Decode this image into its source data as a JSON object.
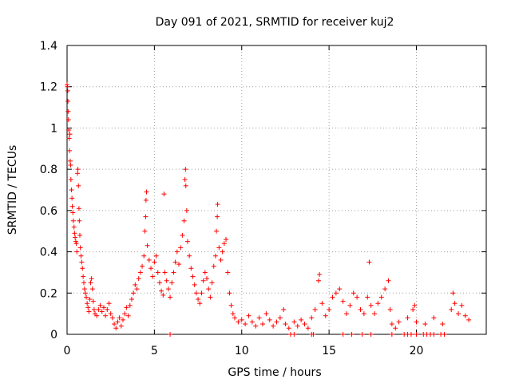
{
  "chart_data": {
    "type": "scatter",
    "title": "Day 091 of 2021, SRMTID for receiver kuj2",
    "xlabel": "GPS time / hours",
    "ylabel": "SRMTID / TECUs",
    "xlim": [
      0,
      24
    ],
    "ylim": [
      0,
      1.4
    ],
    "xticks": [
      0,
      5,
      10,
      15,
      20
    ],
    "xtick_labels": [
      "0",
      "5",
      "10",
      "15",
      "20"
    ],
    "yticks": [
      0,
      0.2,
      0.4,
      0.6,
      0.8,
      1.0,
      1.2,
      1.4
    ],
    "ytick_labels": [
      "0",
      "0.2",
      "0.4",
      "0.6",
      "0.8",
      "1",
      "1.2",
      "1.4"
    ],
    "grid": true,
    "marker": "+",
    "color": "#ff0000",
    "series": [
      {
        "name": "SRMTID",
        "points": [
          [
            0.0,
            1.21
          ],
          [
            0.02,
            1.2
          ],
          [
            0.04,
            1.18
          ],
          [
            0.05,
            1.13
          ],
          [
            0.06,
            1.08
          ],
          [
            0.08,
            1.04
          ],
          [
            0.1,
            0.99
          ],
          [
            0.12,
            0.95
          ],
          [
            0.14,
            0.89
          ],
          [
            0.16,
            0.97
          ],
          [
            0.18,
            0.84
          ],
          [
            0.2,
            0.82
          ],
          [
            0.22,
            0.75
          ],
          [
            0.25,
            0.7
          ],
          [
            0.28,
            0.66
          ],
          [
            0.3,
            0.62
          ],
          [
            0.33,
            0.59
          ],
          [
            0.36,
            0.55
          ],
          [
            0.4,
            0.52
          ],
          [
            0.43,
            0.49
          ],
          [
            0.46,
            0.47
          ],
          [
            0.5,
            0.45
          ],
          [
            0.53,
            0.44
          ],
          [
            0.56,
            0.4
          ],
          [
            0.6,
            0.78
          ],
          [
            0.62,
            0.8
          ],
          [
            0.65,
            0.72
          ],
          [
            0.68,
            0.61
          ],
          [
            0.7,
            0.55
          ],
          [
            0.73,
            0.48
          ],
          [
            0.76,
            0.42
          ],
          [
            0.8,
            0.38
          ],
          [
            0.84,
            0.35
          ],
          [
            0.88,
            0.32
          ],
          [
            0.92,
            0.28
          ],
          [
            0.96,
            0.25
          ],
          [
            1.0,
            0.22
          ],
          [
            1.05,
            0.2
          ],
          [
            1.1,
            0.18
          ],
          [
            1.15,
            0.15
          ],
          [
            1.2,
            0.13
          ],
          [
            1.25,
            0.11
          ],
          [
            1.3,
            0.17
          ],
          [
            1.35,
            0.25
          ],
          [
            1.4,
            0.27
          ],
          [
            1.45,
            0.22
          ],
          [
            1.5,
            0.16
          ],
          [
            1.55,
            0.12
          ],
          [
            1.6,
            0.1
          ],
          [
            1.7,
            0.09
          ],
          [
            1.8,
            0.12
          ],
          [
            1.9,
            0.14
          ],
          [
            2.0,
            0.11
          ],
          [
            2.1,
            0.13
          ],
          [
            2.2,
            0.09
          ],
          [
            2.3,
            0.12
          ],
          [
            2.4,
            0.15
          ],
          [
            2.5,
            0.1
          ],
          [
            2.6,
            0.08
          ],
          [
            2.7,
            0.05
          ],
          [
            2.8,
            0.03
          ],
          [
            2.9,
            0.06
          ],
          [
            3.0,
            0.08
          ],
          [
            3.1,
            0.04
          ],
          [
            3.2,
            0.07
          ],
          [
            3.3,
            0.1
          ],
          [
            3.4,
            0.13
          ],
          [
            3.5,
            0.09
          ],
          [
            3.6,
            0.14
          ],
          [
            3.7,
            0.17
          ],
          [
            3.8,
            0.2
          ],
          [
            3.9,
            0.24
          ],
          [
            4.0,
            0.22
          ],
          [
            4.1,
            0.27
          ],
          [
            4.2,
            0.3
          ],
          [
            4.3,
            0.33
          ],
          [
            4.4,
            0.38
          ],
          [
            4.45,
            0.5
          ],
          [
            4.5,
            0.57
          ],
          [
            4.52,
            0.65
          ],
          [
            4.55,
            0.69
          ],
          [
            4.6,
            0.43
          ],
          [
            4.7,
            0.36
          ],
          [
            4.8,
            0.32
          ],
          [
            4.9,
            0.28
          ],
          [
            5.0,
            0.35
          ],
          [
            5.1,
            0.38
          ],
          [
            5.2,
            0.3
          ],
          [
            5.3,
            0.25
          ],
          [
            5.4,
            0.21
          ],
          [
            5.5,
            0.19
          ],
          [
            5.55,
            0.68
          ],
          [
            5.6,
            0.3
          ],
          [
            5.7,
            0.26
          ],
          [
            5.8,
            0.22
          ],
          [
            5.9,
            0.18
          ],
          [
            6.0,
            0.25
          ],
          [
            6.1,
            0.3
          ],
          [
            6.2,
            0.35
          ],
          [
            6.3,
            0.4
          ],
          [
            6.4,
            0.34
          ],
          [
            6.5,
            0.42
          ],
          [
            6.6,
            0.48
          ],
          [
            6.7,
            0.55
          ],
          [
            6.75,
            0.75
          ],
          [
            6.78,
            0.8
          ],
          [
            6.8,
            0.72
          ],
          [
            6.85,
            0.6
          ],
          [
            6.9,
            0.45
          ],
          [
            7.0,
            0.38
          ],
          [
            7.1,
            0.32
          ],
          [
            7.2,
            0.28
          ],
          [
            7.3,
            0.24
          ],
          [
            7.4,
            0.2
          ],
          [
            7.5,
            0.17
          ],
          [
            7.6,
            0.15
          ],
          [
            7.7,
            0.2
          ],
          [
            7.8,
            0.26
          ],
          [
            7.9,
            0.3
          ],
          [
            8.0,
            0.27
          ],
          [
            8.1,
            0.22
          ],
          [
            8.2,
            0.18
          ],
          [
            8.3,
            0.25
          ],
          [
            8.4,
            0.33
          ],
          [
            8.5,
            0.38
          ],
          [
            8.55,
            0.5
          ],
          [
            8.6,
            0.57
          ],
          [
            8.62,
            0.63
          ],
          [
            8.7,
            0.42
          ],
          [
            8.8,
            0.36
          ],
          [
            8.9,
            0.4
          ],
          [
            9.0,
            0.44
          ],
          [
            9.1,
            0.46
          ],
          [
            9.2,
            0.3
          ],
          [
            9.3,
            0.2
          ],
          [
            9.4,
            0.14
          ],
          [
            9.5,
            0.1
          ],
          [
            9.6,
            0.08
          ],
          [
            9.8,
            0.06
          ],
          [
            10.0,
            0.07
          ],
          [
            10.2,
            0.05
          ],
          [
            10.4,
            0.09
          ],
          [
            10.6,
            0.06
          ],
          [
            10.8,
            0.04
          ],
          [
            11.0,
            0.08
          ],
          [
            11.2,
            0.05
          ],
          [
            11.4,
            0.1
          ],
          [
            11.6,
            0.07
          ],
          [
            11.8,
            0.04
          ],
          [
            12.0,
            0.06
          ],
          [
            12.2,
            0.08
          ],
          [
            12.4,
            0.12
          ],
          [
            12.5,
            0.05
          ],
          [
            12.7,
            0.03
          ],
          [
            13.0,
            0.06
          ],
          [
            13.2,
            0.04
          ],
          [
            13.4,
            0.07
          ],
          [
            13.6,
            0.05
          ],
          [
            13.8,
            0.03
          ],
          [
            14.0,
            0.08
          ],
          [
            14.2,
            0.12
          ],
          [
            14.4,
            0.26
          ],
          [
            14.45,
            0.29
          ],
          [
            14.6,
            0.15
          ],
          [
            14.8,
            0.09
          ],
          [
            15.0,
            0.12
          ],
          [
            15.2,
            0.18
          ],
          [
            15.4,
            0.2
          ],
          [
            15.6,
            0.22
          ],
          [
            15.8,
            0.16
          ],
          [
            16.0,
            0.1
          ],
          [
            16.2,
            0.14
          ],
          [
            16.4,
            0.2
          ],
          [
            16.6,
            0.18
          ],
          [
            16.8,
            0.12
          ],
          [
            17.0,
            0.1
          ],
          [
            17.2,
            0.18
          ],
          [
            17.3,
            0.35
          ],
          [
            17.4,
            0.14
          ],
          [
            17.6,
            0.1
          ],
          [
            17.8,
            0.15
          ],
          [
            18.0,
            0.18
          ],
          [
            18.2,
            0.22
          ],
          [
            18.4,
            0.26
          ],
          [
            18.5,
            0.12
          ],
          [
            18.6,
            0.05
          ],
          [
            18.8,
            0.03
          ],
          [
            19.0,
            0.06
          ],
          [
            19.5,
            0.08
          ],
          [
            19.8,
            0.12
          ],
          [
            19.9,
            0.14
          ],
          [
            20.0,
            0.06
          ],
          [
            20.5,
            0.05
          ],
          [
            21.0,
            0.08
          ],
          [
            21.5,
            0.05
          ],
          [
            22.0,
            0.12
          ],
          [
            22.1,
            0.2
          ],
          [
            22.2,
            0.15
          ],
          [
            22.4,
            0.1
          ],
          [
            22.6,
            0.14
          ],
          [
            22.8,
            0.09
          ],
          [
            23.0,
            0.07
          ],
          [
            5.9,
            0.0
          ],
          [
            12.8,
            0.0
          ],
          [
            13.0,
            0.0
          ],
          [
            14.0,
            0.0
          ],
          [
            14.1,
            0.0
          ],
          [
            15.8,
            0.0
          ],
          [
            16.3,
            0.0
          ],
          [
            16.9,
            0.0
          ],
          [
            17.4,
            0.0
          ],
          [
            18.6,
            0.0
          ],
          [
            19.3,
            0.0
          ],
          [
            19.5,
            0.0
          ],
          [
            19.7,
            0.0
          ],
          [
            20.0,
            0.0
          ],
          [
            20.4,
            0.0
          ],
          [
            20.6,
            0.0
          ],
          [
            20.8,
            0.0
          ],
          [
            21.0,
            0.0
          ],
          [
            21.4,
            0.0
          ],
          [
            21.6,
            0.0
          ]
        ]
      }
    ]
  }
}
